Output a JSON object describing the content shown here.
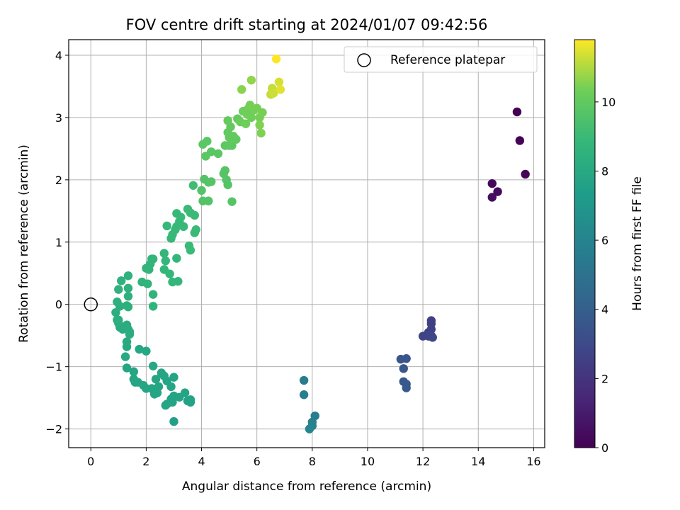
{
  "chart_data": {
    "type": "scatter",
    "title": "FOV centre drift starting at 2024/01/07 09:42:56",
    "xlabel": "Angular distance from reference (arcmin)",
    "ylabel": "Rotation from reference (arcmin)",
    "colorbar_label": "Hours from first FF file",
    "xlim": [
      -0.8,
      16.4
    ],
    "ylim": [
      -2.3,
      4.25
    ],
    "xticks": [
      0,
      2,
      4,
      6,
      8,
      10,
      12,
      14,
      16
    ],
    "yticks": [
      -2,
      -1,
      0,
      1,
      2,
      3,
      4
    ],
    "colorbar_ticks": [
      0,
      2,
      4,
      6,
      8,
      10
    ],
    "colorbar_range": [
      0,
      11.8
    ],
    "colormap": "viridis",
    "grid": true,
    "legend_position": "top-right",
    "reference": {
      "label": "Reference platepar",
      "x": 0,
      "y": 0
    },
    "points": [
      [
        15.4,
        3.09,
        0.0
      ],
      [
        15.5,
        2.63,
        0.1
      ],
      [
        15.7,
        2.09,
        0.2
      ],
      [
        14.5,
        1.94,
        0.3
      ],
      [
        14.7,
        1.81,
        0.4
      ],
      [
        14.5,
        1.72,
        0.5
      ],
      [
        12.3,
        -0.26,
        2.5
      ],
      [
        12.3,
        -0.31,
        2.5
      ],
      [
        12.3,
        -0.4,
        2.6
      ],
      [
        12.2,
        -0.45,
        2.6
      ],
      [
        12.0,
        -0.51,
        2.7
      ],
      [
        12.2,
        -0.51,
        2.7
      ],
      [
        12.3,
        -0.5,
        2.8
      ],
      [
        12.35,
        -0.53,
        2.8
      ],
      [
        11.2,
        -0.88,
        3.5
      ],
      [
        11.4,
        -0.87,
        3.5
      ],
      [
        11.3,
        -1.03,
        3.6
      ],
      [
        11.3,
        -1.24,
        3.6
      ],
      [
        11.4,
        -1.28,
        3.7
      ],
      [
        11.4,
        -1.34,
        3.7
      ],
      [
        7.7,
        -1.22,
        5.5
      ],
      [
        7.7,
        -1.45,
        5.6
      ],
      [
        8.1,
        -1.79,
        5.7
      ],
      [
        8.0,
        -1.89,
        5.8
      ],
      [
        8.0,
        -1.95,
        5.9
      ],
      [
        7.9,
        -2.0,
        6.0
      ],
      [
        3.0,
        -1.88,
        7.5
      ],
      [
        3.5,
        -1.55,
        7.6
      ],
      [
        3.6,
        -1.57,
        7.6
      ],
      [
        3.6,
        -1.53,
        7.6
      ],
      [
        3.4,
        -1.42,
        7.7
      ],
      [
        3.2,
        -1.49,
        7.7
      ],
      [
        3.0,
        -1.47,
        7.7
      ],
      [
        2.9,
        -1.52,
        7.7
      ],
      [
        2.95,
        -1.57,
        7.7
      ],
      [
        3.0,
        -1.17,
        7.7
      ],
      [
        2.7,
        -1.62,
        7.8
      ],
      [
        2.75,
        -1.6,
        7.8
      ],
      [
        2.3,
        -1.44,
        7.8
      ],
      [
        2.25,
        -1.37,
        7.8
      ],
      [
        2.2,
        -1.35,
        7.8
      ],
      [
        2.0,
        -1.35,
        7.8
      ],
      [
        1.9,
        -1.3,
        7.8
      ],
      [
        1.7,
        -1.25,
        7.8
      ],
      [
        1.55,
        -1.2,
        7.8
      ],
      [
        1.6,
        -1.25,
        7.8
      ],
      [
        1.55,
        -1.08,
        7.8
      ],
      [
        1.3,
        -1.02,
        7.8
      ],
      [
        2.55,
        -1.1,
        7.8
      ],
      [
        2.65,
        -1.15,
        7.8
      ],
      [
        2.75,
        -1.23,
        7.8
      ],
      [
        2.9,
        -1.32,
        7.8
      ],
      [
        2.35,
        -1.2,
        7.8
      ],
      [
        2.45,
        -1.32,
        7.8
      ],
      [
        2.4,
        -1.42,
        7.8
      ],
      [
        2.25,
        -0.99,
        7.9
      ],
      [
        2.0,
        -0.75,
        7.9
      ],
      [
        1.75,
        -0.72,
        7.9
      ],
      [
        1.3,
        -0.68,
        8.0
      ],
      [
        1.3,
        -0.6,
        8.0
      ],
      [
        1.25,
        -0.84,
        8.0
      ],
      [
        1.4,
        -0.48,
        8.2
      ],
      [
        1.4,
        -0.44,
        8.2
      ],
      [
        1.35,
        -0.4,
        8.2
      ],
      [
        1.3,
        -0.33,
        8.2
      ],
      [
        1.05,
        -0.37,
        8.2
      ],
      [
        1.15,
        -0.4,
        8.2
      ],
      [
        1.0,
        -0.3,
        8.2
      ],
      [
        1.0,
        -0.25,
        8.3
      ],
      [
        0.95,
        -0.25,
        8.3
      ],
      [
        0.9,
        -0.13,
        8.3
      ],
      [
        1.05,
        -0.03,
        8.3
      ],
      [
        1.35,
        -0.04,
        8.4
      ],
      [
        1.3,
        -0.02,
        8.4
      ],
      [
        0.95,
        0.04,
        8.4
      ],
      [
        1.35,
        0.13,
        8.4
      ],
      [
        1.0,
        0.24,
        8.5
      ],
      [
        1.35,
        0.26,
        8.5
      ],
      [
        1.1,
        0.38,
        8.5
      ],
      [
        1.35,
        0.46,
        8.5
      ],
      [
        1.85,
        0.36,
        8.6
      ],
      [
        2.05,
        0.33,
        8.6
      ],
      [
        2.25,
        0.16,
        8.6
      ],
      [
        2.25,
        -0.03,
        8.6
      ],
      [
        2.0,
        0.58,
        8.7
      ],
      [
        2.1,
        0.56,
        8.7
      ],
      [
        2.15,
        0.65,
        8.7
      ],
      [
        2.2,
        0.73,
        8.7
      ],
      [
        2.25,
        0.73,
        8.7
      ],
      [
        2.65,
        0.56,
        8.8
      ],
      [
        2.7,
        0.7,
        8.8
      ],
      [
        2.85,
        0.49,
        8.8
      ],
      [
        2.65,
        0.82,
        8.8
      ],
      [
        2.95,
        0.36,
        8.8
      ],
      [
        3.1,
        0.74,
        8.8
      ],
      [
        3.15,
        0.37,
        8.8
      ],
      [
        2.75,
        1.26,
        8.9
      ],
      [
        2.9,
        1.06,
        8.9
      ],
      [
        2.95,
        1.12,
        8.9
      ],
      [
        3.05,
        1.2,
        8.9
      ],
      [
        3.1,
        1.25,
        8.9
      ],
      [
        3.2,
        1.33,
        8.9
      ],
      [
        3.35,
        1.25,
        8.9
      ],
      [
        3.1,
        1.46,
        8.9
      ],
      [
        3.25,
        1.4,
        8.9
      ],
      [
        3.5,
        1.53,
        9.0
      ],
      [
        3.6,
        1.47,
        9.0
      ],
      [
        3.75,
        1.43,
        9.0
      ],
      [
        3.75,
        1.15,
        9.0
      ],
      [
        3.8,
        1.2,
        9.0
      ],
      [
        3.55,
        0.94,
        9.0
      ],
      [
        3.6,
        0.87,
        9.0
      ],
      [
        3.7,
        1.91,
        9.1
      ],
      [
        4.0,
        1.83,
        9.6
      ],
      [
        4.05,
        1.66,
        9.6
      ],
      [
        4.25,
        1.66,
        9.6
      ],
      [
        4.1,
        2.01,
        9.6
      ],
      [
        4.25,
        1.96,
        9.7
      ],
      [
        4.35,
        1.97,
        9.7
      ],
      [
        4.8,
        2.1,
        9.7
      ],
      [
        4.9,
        2.0,
        9.7
      ],
      [
        4.95,
        1.92,
        9.7
      ],
      [
        4.85,
        2.15,
        9.7
      ],
      [
        5.1,
        1.65,
        9.7
      ],
      [
        4.05,
        2.57,
        9.8
      ],
      [
        4.2,
        2.62,
        9.8
      ],
      [
        4.15,
        2.38,
        9.8
      ],
      [
        4.35,
        2.45,
        9.8
      ],
      [
        4.6,
        2.42,
        9.8
      ],
      [
        4.85,
        2.55,
        9.9
      ],
      [
        5.0,
        2.55,
        9.9
      ],
      [
        5.1,
        2.55,
        9.9
      ],
      [
        5.0,
        2.68,
        10.0
      ],
      [
        5.15,
        2.7,
        10.0
      ],
      [
        5.25,
        2.65,
        10.0
      ],
      [
        4.95,
        2.76,
        10.0
      ],
      [
        5.05,
        2.85,
        10.0
      ],
      [
        4.95,
        2.95,
        10.1
      ],
      [
        5.3,
        2.98,
        10.1
      ],
      [
        5.4,
        2.93,
        10.2
      ],
      [
        5.5,
        3.1,
        10.3
      ],
      [
        5.65,
        3.05,
        10.3
      ],
      [
        5.8,
        3.0,
        10.3
      ],
      [
        5.7,
        3.15,
        10.3
      ],
      [
        5.6,
        2.9,
        10.3
      ],
      [
        5.75,
        3.2,
        10.4
      ],
      [
        5.9,
        3.12,
        10.4
      ],
      [
        6.0,
        3.15,
        10.4
      ],
      [
        6.1,
        3.0,
        10.4
      ],
      [
        6.2,
        3.08,
        10.4
      ],
      [
        6.1,
        2.88,
        10.5
      ],
      [
        6.15,
        2.75,
        10.5
      ],
      [
        5.45,
        3.45,
        10.6
      ],
      [
        5.8,
        3.6,
        10.7
      ],
      [
        6.5,
        3.37,
        11.2
      ],
      [
        6.55,
        3.47,
        11.2
      ],
      [
        6.6,
        3.39,
        11.3
      ],
      [
        6.8,
        3.57,
        11.4
      ],
      [
        6.85,
        3.45,
        11.5
      ],
      [
        6.7,
        3.94,
        11.8
      ]
    ]
  }
}
